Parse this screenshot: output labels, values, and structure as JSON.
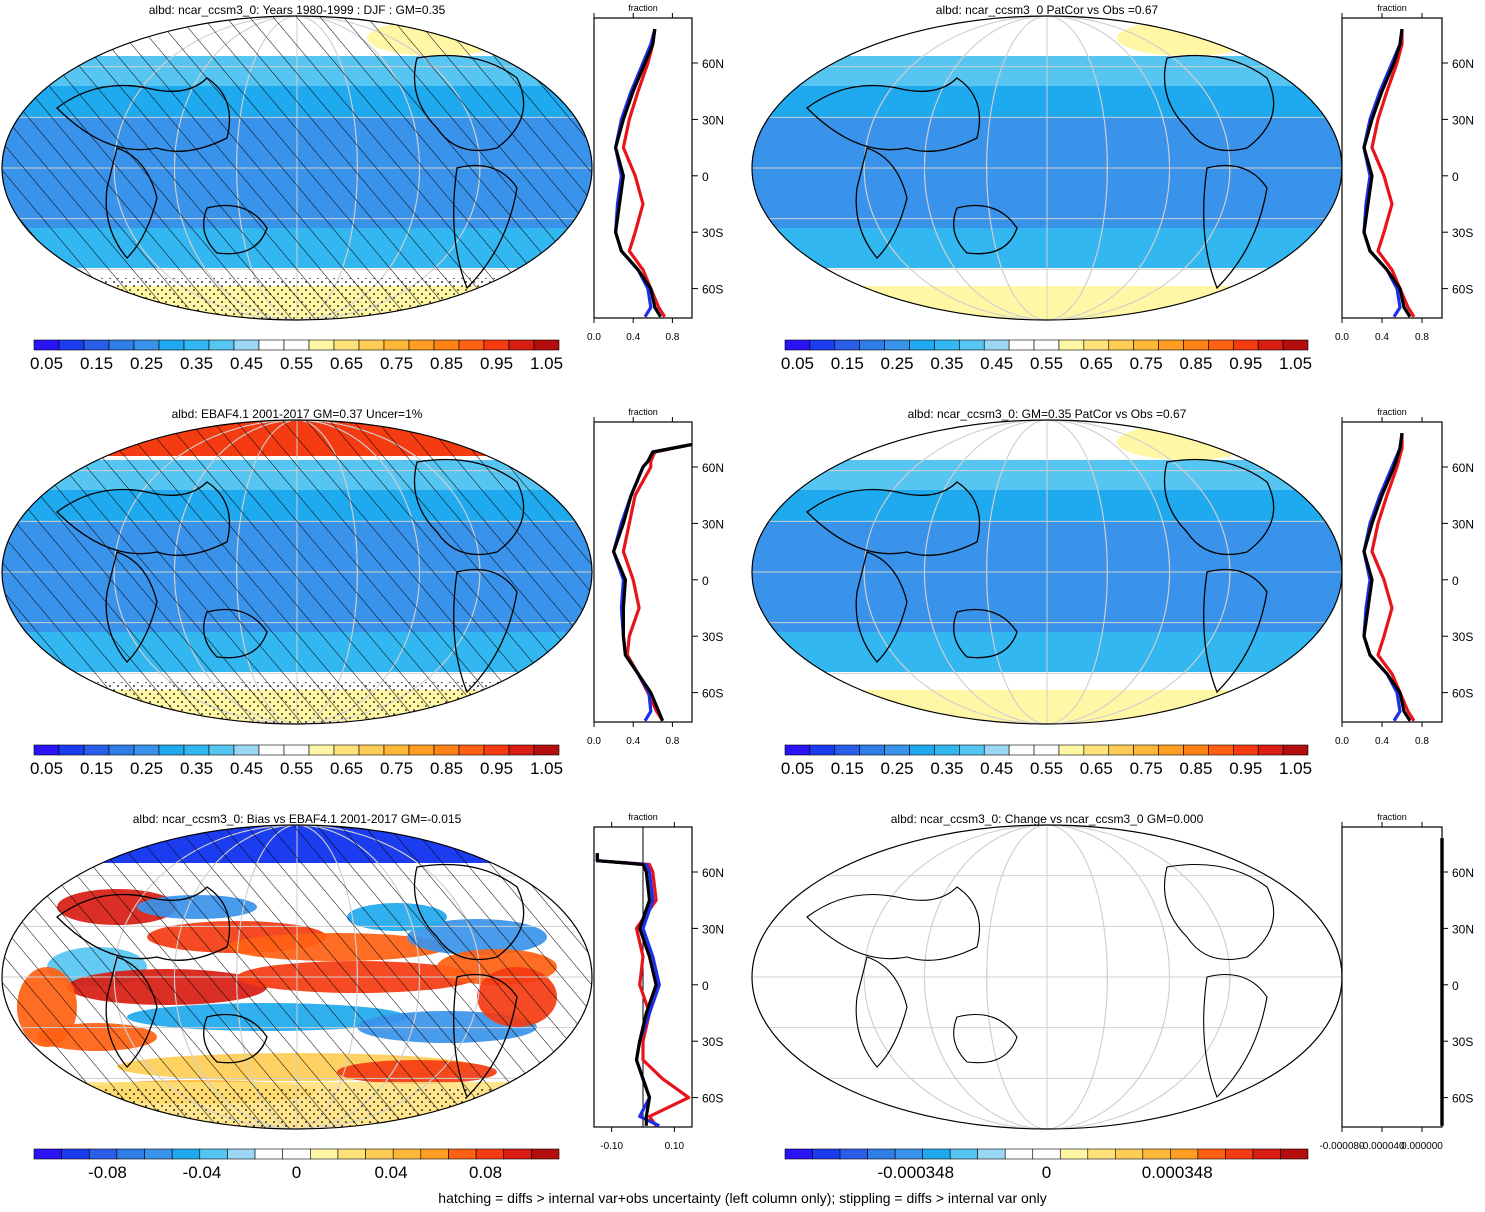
{
  "footer": "hatching = diffs > internal var+obs uncertainty (left column only); stippling = diffs > internal var only",
  "colors": {
    "abs_scale": [
      "#2a14f5",
      "#1c3cf0",
      "#2a5ee8",
      "#2f7ee8",
      "#3a93ea",
      "#1fa9ee",
      "#33b7f1",
      "#56c5f2",
      "#9bd7f4",
      "#ffffff",
      "#ffffff",
      "#fff7a6",
      "#ffe27a",
      "#ffcd55",
      "#ffb737",
      "#ff9e22",
      "#ff8216",
      "#ff6112",
      "#f53b12",
      "#d81d12",
      "#b40d0d"
    ],
    "diff_scale": [
      "#2a14f5",
      "#1c3cf0",
      "#2a5ee8",
      "#2f7ee8",
      "#3a93ea",
      "#1fa9ee",
      "#56c5f2",
      "#9bd7f4",
      "#ffffff",
      "#ffffff",
      "#fff7a6",
      "#ffe27a",
      "#ffcd55",
      "#ffb737",
      "#ff9e22",
      "#ff6112",
      "#f53b12",
      "#d81d12",
      "#b40d0d"
    ],
    "line_model": "#000000",
    "line_obs1": "#e8141b",
    "line_obs2": "#1c2fe8"
  },
  "panels": [
    {
      "title": "albd: ncar_ccsm3_0: Years 1980-1999 : DJF : GM=0.35",
      "map_style": "abs_hatched",
      "colorbar_labels": [
        "0.05",
        "0.15",
        "0.25",
        "0.35",
        "0.45",
        "0.55",
        "0.65",
        "0.75",
        "0.85",
        "0.95",
        "1.05"
      ],
      "profile": {
        "xlabel": "fraction",
        "xticks": [
          "0.0",
          "0.4",
          "0.8"
        ],
        "yticks": [
          "60N",
          "30N",
          "0",
          "30S",
          "60S"
        ]
      }
    },
    {
      "title": "albd: ncar_ccsm3_0 PatCor vs Obs =0.67",
      "map_style": "abs",
      "colorbar_labels": [
        "0.05",
        "0.15",
        "0.25",
        "0.35",
        "0.45",
        "0.55",
        "0.65",
        "0.75",
        "0.85",
        "0.95",
        "1.05"
      ],
      "profile": {
        "xlabel": "fraction",
        "xticks": [
          "0.0",
          "0.4",
          "0.8"
        ],
        "yticks": [
          "60N",
          "30N",
          "0",
          "30S",
          "60S"
        ]
      }
    },
    {
      "title": "albd: EBAF4.1 2001-2017 GM=0.37 Uncer=1%",
      "map_style": "obs_hatched",
      "colorbar_labels": [
        "0.05",
        "0.15",
        "0.25",
        "0.35",
        "0.45",
        "0.55",
        "0.65",
        "0.75",
        "0.85",
        "0.95",
        "1.05"
      ],
      "profile": {
        "xlabel": "fraction",
        "xticks": [
          "0.0",
          "0.4",
          "0.8"
        ],
        "yticks": [
          "60N",
          "30N",
          "0",
          "30S",
          "60S"
        ]
      }
    },
    {
      "title": "albd: ncar_ccsm3_0: GM=0.35 PatCor vs Obs =0.67",
      "map_style": "abs",
      "colorbar_labels": [
        "0.05",
        "0.15",
        "0.25",
        "0.35",
        "0.45",
        "0.55",
        "0.65",
        "0.75",
        "0.85",
        "0.95",
        "1.05"
      ],
      "profile": {
        "xlabel": "fraction",
        "xticks": [
          "0.0",
          "0.4",
          "0.8"
        ],
        "yticks": [
          "60N",
          "30N",
          "0",
          "30S",
          "60S"
        ]
      }
    },
    {
      "title": "albd: ncar_ccsm3_0: Bias vs EBAF4.1 2001-2017 GM=-0.015",
      "map_style": "bias",
      "colorbar_labels": [
        "-0.08",
        "-0.04",
        "0",
        "0.04",
        "0.08"
      ],
      "profile": {
        "xlabel": "fraction",
        "xticks": [
          "-0.10",
          "0.10"
        ],
        "yticks": [
          "60N",
          "30N",
          "0",
          "30S",
          "60S"
        ]
      }
    },
    {
      "title": "albd: ncar_ccsm3_0: Change vs ncar_ccsm3_0 GM=0.000",
      "map_style": "blank",
      "colorbar_labels": [
        "-0.000348",
        "0",
        "0.000348"
      ],
      "profile": {
        "xlabel": "fraction",
        "xticks": [
          "-0.000080",
          "-0.000040",
          "0.000000"
        ],
        "yticks": [
          "60N",
          "30N",
          "0",
          "30S",
          "60S"
        ]
      }
    }
  ],
  "chart_data": {
    "type": "heatmap",
    "variable": "albd",
    "lat_ticks": [
      60,
      30,
      0,
      -30,
      -60
    ],
    "profiles": [
      {
        "xlim": [
          0.0,
          1.0
        ],
        "lat": [
          78,
          70,
          60,
          45,
          30,
          15,
          0,
          -15,
          -30,
          -40,
          -50,
          -60,
          -70,
          -75
        ],
        "model": [
          0.62,
          0.6,
          0.52,
          0.4,
          0.3,
          0.22,
          0.3,
          0.26,
          0.22,
          0.28,
          0.45,
          0.58,
          0.62,
          0.68
        ],
        "obs1": [
          0.62,
          0.6,
          0.55,
          0.45,
          0.36,
          0.3,
          0.42,
          0.5,
          0.42,
          0.36,
          0.5,
          0.58,
          0.66,
          0.72
        ],
        "obs2": [
          0.62,
          0.58,
          0.5,
          0.38,
          0.28,
          0.22,
          0.28,
          0.24,
          0.22,
          0.28,
          0.45,
          0.55,
          0.58,
          0.52
        ]
      },
      {
        "xlim": [
          0.0,
          1.0
        ],
        "lat": [
          78,
          70,
          60,
          45,
          30,
          15,
          0,
          -15,
          -30,
          -40,
          -50,
          -60,
          -70,
          -75
        ],
        "model": [
          0.6,
          0.58,
          0.52,
          0.4,
          0.3,
          0.22,
          0.3,
          0.26,
          0.22,
          0.28,
          0.45,
          0.58,
          0.62,
          0.68
        ],
        "obs1": [
          0.6,
          0.6,
          0.55,
          0.45,
          0.36,
          0.3,
          0.42,
          0.5,
          0.42,
          0.36,
          0.5,
          0.58,
          0.66,
          0.72
        ],
        "obs2": [
          0.6,
          0.58,
          0.5,
          0.38,
          0.28,
          0.22,
          0.28,
          0.24,
          0.22,
          0.28,
          0.45,
          0.55,
          0.58,
          0.52
        ]
      },
      {
        "xlim": [
          0.0,
          1.0
        ],
        "lat": [
          72,
          68,
          63,
          60,
          45,
          30,
          15,
          0,
          -15,
          -30,
          -40,
          -50,
          -60,
          -70,
          -75
        ],
        "model": [
          1.0,
          0.6,
          0.55,
          0.5,
          0.38,
          0.3,
          0.2,
          0.32,
          0.3,
          0.3,
          0.32,
          0.45,
          0.58,
          0.66,
          0.7
        ],
        "obs1": [
          1.0,
          0.62,
          0.58,
          0.58,
          0.42,
          0.36,
          0.3,
          0.4,
          0.46,
          0.36,
          0.34,
          0.45,
          0.55,
          0.64,
          0.7
        ],
        "obs2": [
          1.0,
          0.6,
          0.55,
          0.5,
          0.38,
          0.28,
          0.2,
          0.3,
          0.28,
          0.3,
          0.32,
          0.45,
          0.56,
          0.58,
          0.52
        ]
      },
      {
        "xlim": [
          0.0,
          1.0
        ],
        "lat": [
          78,
          70,
          60,
          45,
          30,
          15,
          0,
          -15,
          -30,
          -40,
          -50,
          -60,
          -70,
          -75
        ],
        "model": [
          0.6,
          0.58,
          0.52,
          0.4,
          0.3,
          0.22,
          0.3,
          0.26,
          0.22,
          0.28,
          0.45,
          0.58,
          0.62,
          0.68
        ],
        "obs1": [
          0.6,
          0.6,
          0.55,
          0.45,
          0.36,
          0.3,
          0.42,
          0.5,
          0.42,
          0.36,
          0.5,
          0.58,
          0.66,
          0.72
        ],
        "obs2": [
          0.6,
          0.58,
          0.5,
          0.38,
          0.28,
          0.22,
          0.28,
          0.24,
          0.22,
          0.28,
          0.45,
          0.55,
          0.58,
          0.52
        ]
      },
      {
        "xlim": [
          -0.15,
          0.15
        ],
        "lat": [
          70,
          66,
          64,
          60,
          45,
          30,
          15,
          0,
          -15,
          -30,
          -40,
          -50,
          -60,
          -70,
          -75
        ],
        "model": [
          -0.14,
          -0.14,
          0.0,
          0.01,
          0.02,
          -0.01,
          0.02,
          0.04,
          0.01,
          -0.01,
          -0.02,
          0.0,
          0.02,
          0.01,
          0.01
        ],
        "obs1": [
          -0.14,
          -0.14,
          0.02,
          0.03,
          0.04,
          -0.02,
          0.0,
          -0.01,
          0.02,
          0.0,
          0.0,
          0.06,
          0.14,
          0.02,
          0.04
        ],
        "obs2": [
          -0.14,
          -0.14,
          0.01,
          0.02,
          0.03,
          0.0,
          0.03,
          0.05,
          0.02,
          -0.01,
          -0.02,
          0.0,
          0.02,
          -0.01,
          0.05
        ]
      },
      {
        "xlim": [
          -0.0001,
          0.0
        ],
        "lat": [
          78,
          -75
        ],
        "model": [
          0.0,
          0.0
        ],
        "obs1": [
          0.0,
          0.0
        ],
        "obs2": [
          0.0,
          0.0
        ]
      }
    ]
  }
}
